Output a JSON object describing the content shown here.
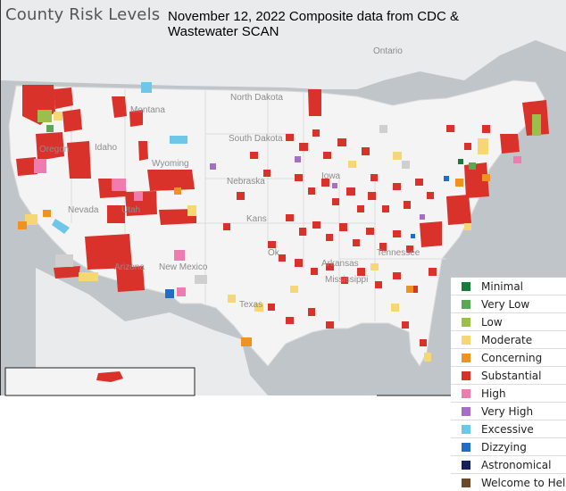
{
  "title": "County Risk Levels",
  "subtitle": "November 12, 2022 Composite data from CDC & Wastewater SCAN",
  "map_labels": {
    "ontario": "Ontario",
    "montana": "Montana",
    "north_dakota": "North Dakota",
    "south_dakota": "South Dakota",
    "idaho": "Idaho",
    "wyoming": "Wyoming",
    "oregon": "Oregon",
    "nevada": "Nevada",
    "utah": "Utah",
    "nebraska": "Nebraska",
    "iowa": "Iowa",
    "kansas": "Kans",
    "oklahoma": "Ok",
    "arkansas": "Arkansas",
    "tennessee": "Tennessee",
    "mississippi": "Mississippi",
    "arizona": "Arizona",
    "new_mexico": "New Mexico",
    "texas": "Texas"
  },
  "legend": [
    {
      "label": "Minimal",
      "color": "#1a7a3a"
    },
    {
      "label": "Very Low",
      "color": "#5ba854"
    },
    {
      "label": "Low",
      "color": "#9bbf4a"
    },
    {
      "label": "Moderate",
      "color": "#f7d774"
    },
    {
      "label": "Concerning",
      "color": "#f0921f"
    },
    {
      "label": "Substantial",
      "color": "#d9322b"
    },
    {
      "label": "High",
      "color": "#f07bae"
    },
    {
      "label": "Very High",
      "color": "#a66fc7"
    },
    {
      "label": "Excessive",
      "color": "#6ec6e8"
    },
    {
      "label": "Dizzying",
      "color": "#1f6fc9"
    },
    {
      "label": "Astronomical",
      "color": "#14215e"
    },
    {
      "label": "Welcome to Hell",
      "color": "#6b4a2a"
    }
  ]
}
